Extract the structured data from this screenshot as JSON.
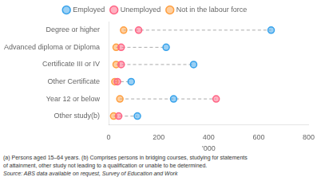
{
  "chart_data": {
    "type": "dot",
    "orientation": "horizontal",
    "categories": [
      "Degree or higher",
      "Advanced diploma or Diploma",
      "Certificate III or IV",
      "Other Certificate",
      "Year 12 or below",
      "Other study(b)"
    ],
    "series": [
      {
        "name": "Employed",
        "marker": "circle",
        "values": [
          650,
          230,
          340,
          90,
          260,
          115
        ]
      },
      {
        "name": "Unemployed",
        "marker": "circle",
        "values": [
          120,
          50,
          50,
          35,
          430,
          40
        ]
      },
      {
        "name": "Not in the labour force",
        "marker": "circle",
        "values": [
          60,
          30,
          30,
          25,
          45,
          20
        ]
      }
    ],
    "xlabel": "'000",
    "xlim": [
      0,
      800
    ],
    "xticks": [
      0,
      200,
      400,
      600,
      800
    ],
    "color": "#aaaaaa",
    "line_style": "dashed",
    "grid": false,
    "legend": "top",
    "annotations": [
      "(a) Persons aged 15–64 years. (b) Comprises persons in bridging courses, studying for statements",
      "of attainment, other study not leading to a qualification or unable to be determined.",
      "Source: ABS data available on request, Survey of Education and Work"
    ]
  }
}
